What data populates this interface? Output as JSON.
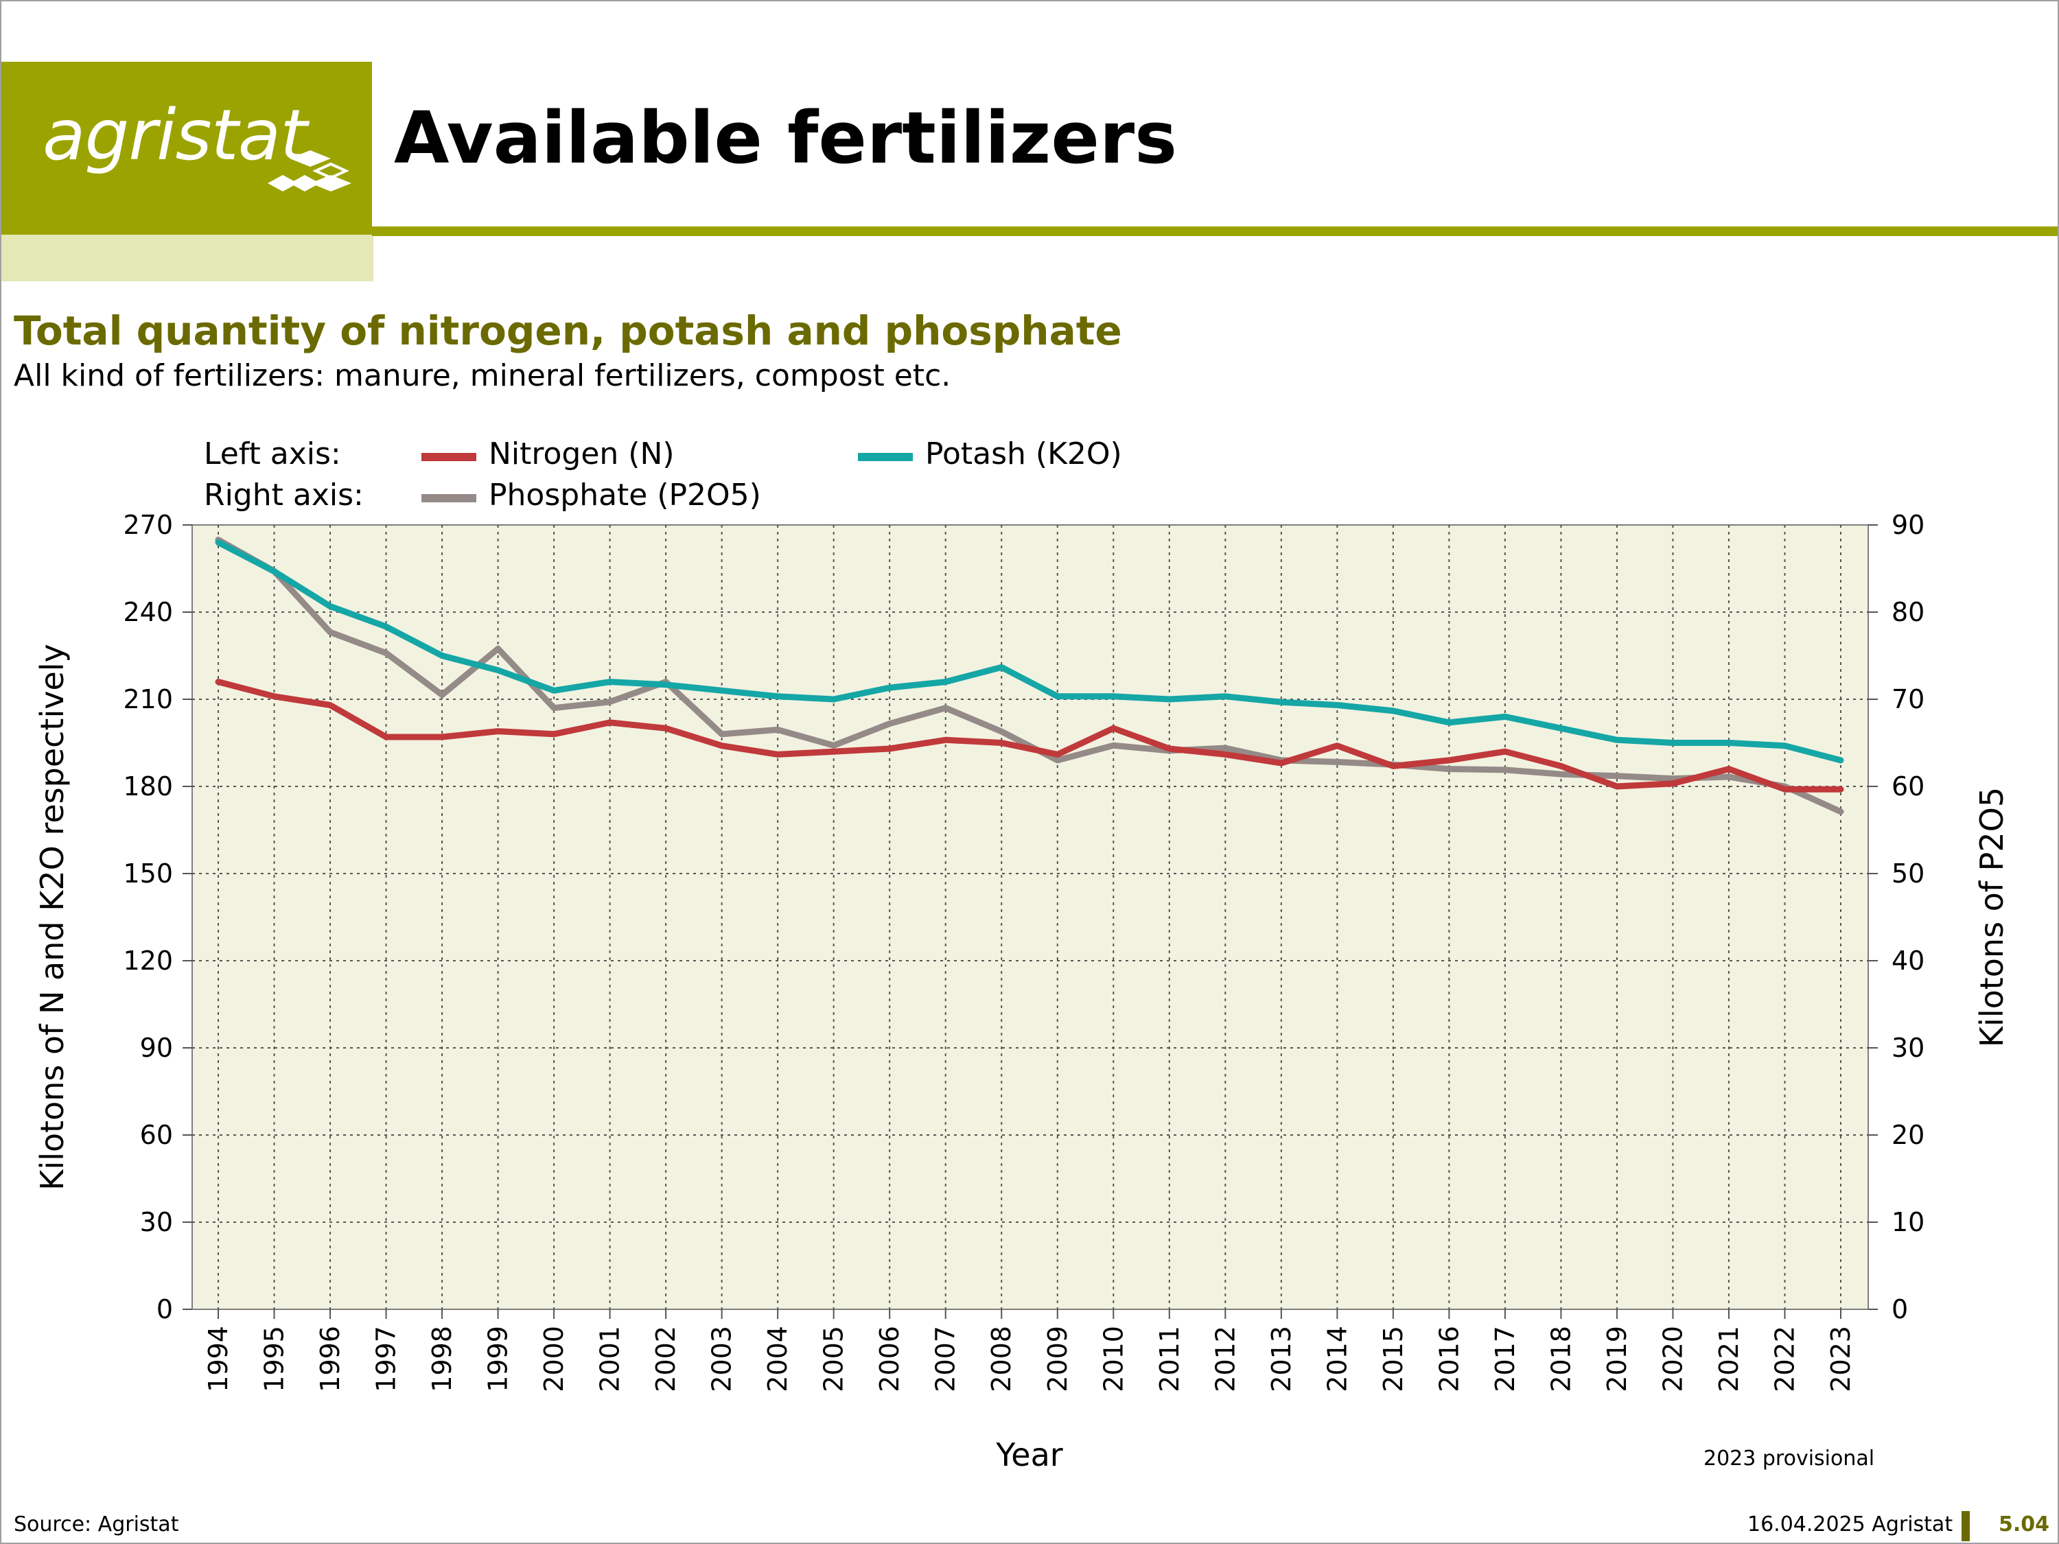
{
  "header": {
    "logo_text": "agristat",
    "title": "Available fertilizers"
  },
  "chart_heading": {
    "title": "Total quantity of nitrogen, potash and phosphate",
    "subtitle": "All kind of fertilizers: manure, mineral fertilizers, compost etc."
  },
  "legend": {
    "left_axis_label": "Left axis:",
    "right_axis_label": "Right axis:"
  },
  "footer": {
    "source": "Source: Agristat",
    "date": "16.04.2025 Agristat",
    "page": "5.04",
    "note": "2023 provisional"
  },
  "colors": {
    "brand": "#9ba300",
    "brand_light": "#e4e7b6",
    "title_olive": "#6b6a00",
    "plot_bg": "#f2f2e0",
    "nitrogen": "#c0393b",
    "potash": "#15a6a6",
    "phosphate": "#948a87"
  },
  "chart_data": {
    "type": "line",
    "xlabel": "Year",
    "ylabel": "Kilotons of N and K2O respectively",
    "y2label": "Kilotons of P2O5",
    "ylim": [
      0,
      270
    ],
    "y2lim": [
      0,
      90
    ],
    "yticks": [
      "0",
      "30",
      "60",
      "90",
      "120",
      "150",
      "180",
      "210",
      "240",
      "270"
    ],
    "y2ticks": [
      "0",
      "10",
      "20",
      "30",
      "40",
      "50",
      "60",
      "70",
      "80",
      "90"
    ],
    "grid": true,
    "categories": [
      "1994",
      "1995",
      "1996",
      "1997",
      "1998",
      "1999",
      "2000",
      "2001",
      "2002",
      "2003",
      "2004",
      "2005",
      "2006",
      "2007",
      "2008",
      "2009",
      "2010",
      "2011",
      "2012",
      "2013",
      "2014",
      "2015",
      "2016",
      "2017",
      "2018",
      "2019",
      "2020",
      "2021",
      "2022",
      "2023"
    ],
    "series": [
      {
        "name": "Nitrogen (N)",
        "axis": "left",
        "color": "#c0393b",
        "values": [
          216,
          211,
          208,
          197,
          197,
          199,
          198,
          202,
          200,
          194,
          191,
          192,
          193,
          196,
          195,
          191,
          200,
          193,
          191,
          188,
          194,
          187,
          189,
          192,
          187,
          180,
          181,
          186,
          179,
          179
        ]
      },
      {
        "name": "Potash (K2O)",
        "axis": "left",
        "color": "#15a6a6",
        "values": [
          264,
          254,
          242,
          235,
          225,
          220,
          213,
          216,
          215,
          213,
          211,
          210,
          214,
          216,
          221,
          211,
          211,
          210,
          211,
          209,
          208,
          206,
          202,
          204,
          200,
          196,
          195,
          195,
          194,
          189
        ]
      },
      {
        "name": "Phosphate (P2O5)",
        "axis": "right",
        "color": "#948a87",
        "values": [
          88.3,
          84.7,
          77.7,
          75.3,
          70.5,
          75.8,
          69,
          69.7,
          72,
          66,
          66.5,
          64.7,
          67.2,
          69,
          66.3,
          63,
          64.7,
          64.1,
          64.4,
          63,
          62.8,
          62.5,
          62,
          61.9,
          61.4,
          61.2,
          60.9,
          61.1,
          60,
          57.1
        ]
      }
    ]
  }
}
